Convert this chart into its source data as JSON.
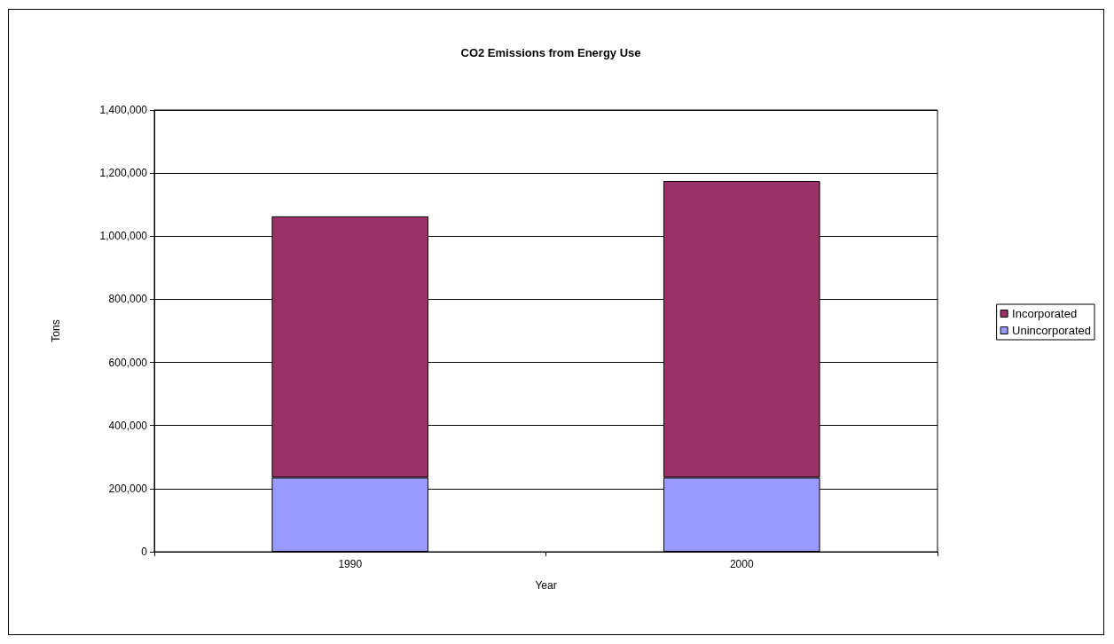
{
  "chart_data": {
    "type": "bar",
    "title": "CO2 Emissions from Energy Use",
    "xlabel": "Year",
    "ylabel": "Tons",
    "categories": [
      "1990",
      "2000"
    ],
    "series": [
      {
        "name": "Unincorporated",
        "color": "#9999ff",
        "values": [
          235000,
          235000
        ]
      },
      {
        "name": "Incorporated",
        "color": "#993366",
        "values": [
          828000,
          940000
        ]
      }
    ],
    "stacked": true,
    "ylim": [
      0,
      1400000
    ],
    "yticks": [
      0,
      {
        "value": 200000,
        "label": "200,000"
      },
      {
        "value": 400000,
        "label": "400,000"
      },
      {
        "value": 600000,
        "label": "600,000"
      },
      {
        "value": 800000,
        "label": "800,000"
      },
      {
        "value": 1000000,
        "label": "1,000,000"
      },
      {
        "value": 1200000,
        "label": "1,200,000"
      },
      {
        "value": 1400000,
        "label": "1,400,000"
      }
    ],
    "grid": "y",
    "legend": "right"
  }
}
